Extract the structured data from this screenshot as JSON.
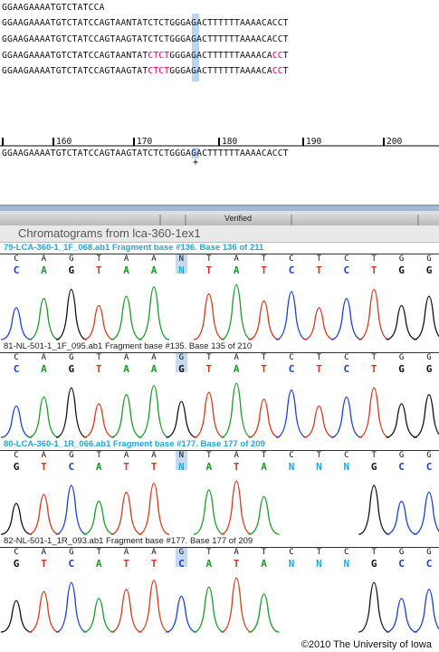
{
  "alignment": {
    "lines": [
      "GGAAGAAAATGTCTATCCA",
      "GGAAGAAAATGTCTATCCAGTAANTATCTCTGGGAGACTTTTTTAAAACACCT",
      "GGAAGAAAATGTCTATCCAGTAAGTATCTCTGGGAGACTTTTTTAAAACACCT",
      "GGAAGAAAATGTCTATCCAGTAANTAT|CTCT|GGGAGACTTTTTTAAAACA|CC|T",
      "GGAAGAAAATGTCTATCCAGTAAGTAT|CTCT|GGGAGACTTTTTTAAAACA|CC|T"
    ],
    "consensus": "GGAAGAAAATGTCTATCCAGTAAGTATCTCTGGGAGACTTTTTTAAAACACCT",
    "ruler_labels": [
      "160",
      "170",
      "180",
      "190",
      "200"
    ],
    "cursor_mark": "+"
  },
  "toolbar": {
    "verified_label": "Verified"
  },
  "chromatogram_panel": {
    "title": "Chromatograms from lca-360-1ex1"
  },
  "traces": [
    {
      "header": "79-LCA-360-1_1F_068.ab1 Fragment base #136. Base 136 of 211",
      "selected": true,
      "small_bases": [
        "C",
        "A",
        "G",
        "T",
        "A",
        "A",
        "N",
        "T",
        "A",
        "T",
        "C",
        "T",
        "C",
        "T",
        "G",
        "G"
      ],
      "big_bases": [
        "C",
        "A",
        "G",
        "T",
        "A",
        "A",
        "N",
        "T",
        "A",
        "T",
        "C",
        "T",
        "C",
        "T",
        "G",
        "G"
      ]
    },
    {
      "header": "81-NL-501-1_1F_095.ab1 Fragment base #135. Base 135 of 210",
      "selected": false,
      "small_bases": [
        "C",
        "A",
        "G",
        "T",
        "A",
        "A",
        "G",
        "T",
        "A",
        "T",
        "C",
        "T",
        "C",
        "T",
        "G",
        "G"
      ],
      "big_bases": [
        "C",
        "A",
        "G",
        "T",
        "A",
        "A",
        "G",
        "T",
        "A",
        "T",
        "C",
        "T",
        "C",
        "T",
        "G",
        "G"
      ]
    },
    {
      "header": "80-LCA-360-1_1R_066.ab1 Fragment base #177. Base 177 of 209",
      "selected": true,
      "small_bases": [
        "C",
        "A",
        "G",
        "T",
        "A",
        "A",
        "N",
        "T",
        "A",
        "T",
        "C",
        "T",
        "C",
        "T",
        "G",
        "G"
      ],
      "big_bases": [
        "G",
        "T",
        "C",
        "A",
        "T",
        "T",
        "N",
        "A",
        "T",
        "A",
        "N",
        "N",
        "N",
        "G",
        "C",
        "C"
      ]
    },
    {
      "header": "82-NL-501-1_1R_093.ab1 Fragment base #177. Base 177 of 209",
      "selected": false,
      "small_bases": [
        "C",
        "A",
        "G",
        "T",
        "A",
        "A",
        "G",
        "T",
        "A",
        "T",
        "C",
        "T",
        "C",
        "T",
        "G",
        "G"
      ],
      "big_bases": [
        "G",
        "T",
        "C",
        "A",
        "T",
        "T",
        "C",
        "A",
        "T",
        "A",
        "N",
        "N",
        "N",
        "G",
        "C",
        "C"
      ]
    }
  ],
  "colors": {
    "A": "#1a9a2a",
    "C": "#1b3fd1",
    "G": "#111111",
    "T": "#d23a1c",
    "N": "#26a7d8",
    "highlight": "#bcd6f2",
    "mismatch": "#e0007a"
  },
  "copyright": "©2010 The University of Iowa"
}
